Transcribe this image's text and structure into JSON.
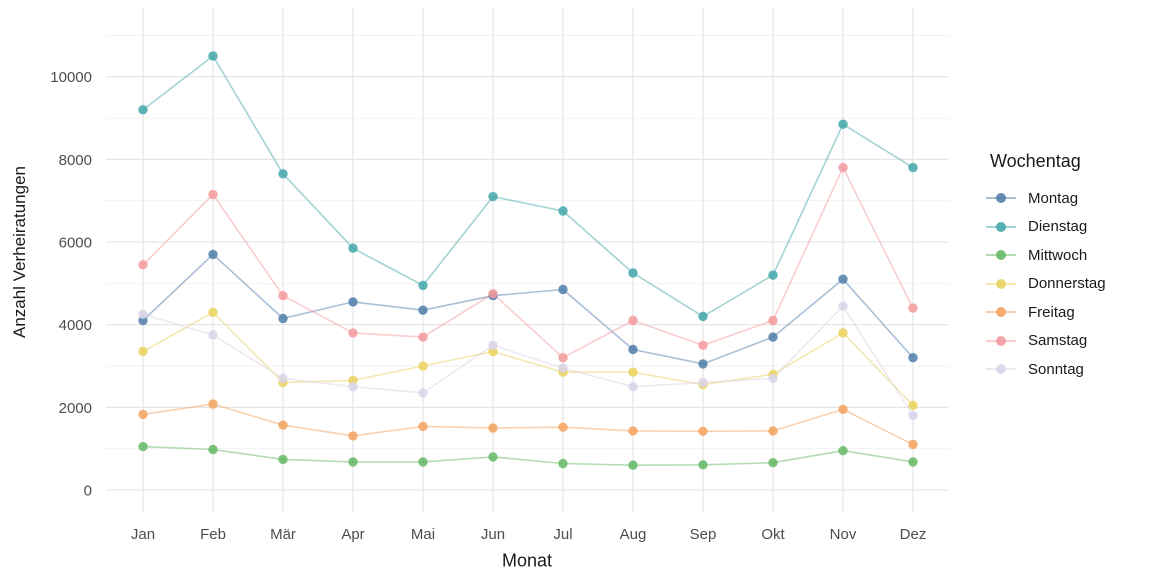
{
  "figure": {
    "y_axis_title": "Anzahl Verheiratungen",
    "x_axis_title": "Monat"
  },
  "chart_data": {
    "type": "line",
    "x": [
      "Jan",
      "Feb",
      "Mär",
      "Apr",
      "Mai",
      "Jun",
      "Jul",
      "Aug",
      "Sep",
      "Okt",
      "Nov",
      "Dez"
    ],
    "xlabel": "Monat",
    "ylabel": "Anzahl Verheiratungen",
    "ylim": [
      0,
      11600
    ],
    "yticks": [
      0,
      2000,
      4000,
      6000,
      8000,
      10000
    ],
    "grid": true,
    "legend": {
      "title": "Wochentag",
      "position": "right"
    },
    "tick_color": "#4d4d4d",
    "series": [
      {
        "name": "Montag",
        "color": "#5480ab",
        "values": [
          4100,
          5700,
          4150,
          4550,
          4350,
          4700,
          4850,
          3400,
          3050,
          3700,
          5100,
          3200
        ]
      },
      {
        "name": "Dienstag",
        "color": "#46a8ab",
        "values": [
          9200,
          10500,
          7650,
          5850,
          4950,
          7100,
          6750,
          5250,
          4200,
          5200,
          8850,
          7800
        ]
      },
      {
        "name": "Mittwoch",
        "color": "#67b967",
        "values": [
          1050,
          980,
          740,
          680,
          680,
          800,
          640,
          600,
          610,
          660,
          950,
          680
        ]
      },
      {
        "name": "Donnerstag",
        "color": "#e9d35f",
        "values": [
          3350,
          4300,
          2600,
          2650,
          3000,
          3350,
          2850,
          2850,
          2550,
          2800,
          3800,
          2050
        ]
      },
      {
        "name": "Freitag",
        "color": "#f4a461",
        "values": [
          1830,
          2080,
          1570,
          1310,
          1540,
          1500,
          1520,
          1430,
          1420,
          1430,
          1950,
          1100
        ]
      },
      {
        "name": "Samstag",
        "color": "#f39b9d",
        "values": [
          5450,
          7150,
          4700,
          3800,
          3700,
          4750,
          3200,
          4100,
          3500,
          4100,
          7800,
          4400
        ]
      },
      {
        "name": "Sonntag",
        "color": "#d9d4e8",
        "values": [
          4250,
          3750,
          2700,
          2500,
          2350,
          3500,
          2950,
          2500,
          2600,
          2700,
          4450,
          1800
        ]
      }
    ]
  }
}
